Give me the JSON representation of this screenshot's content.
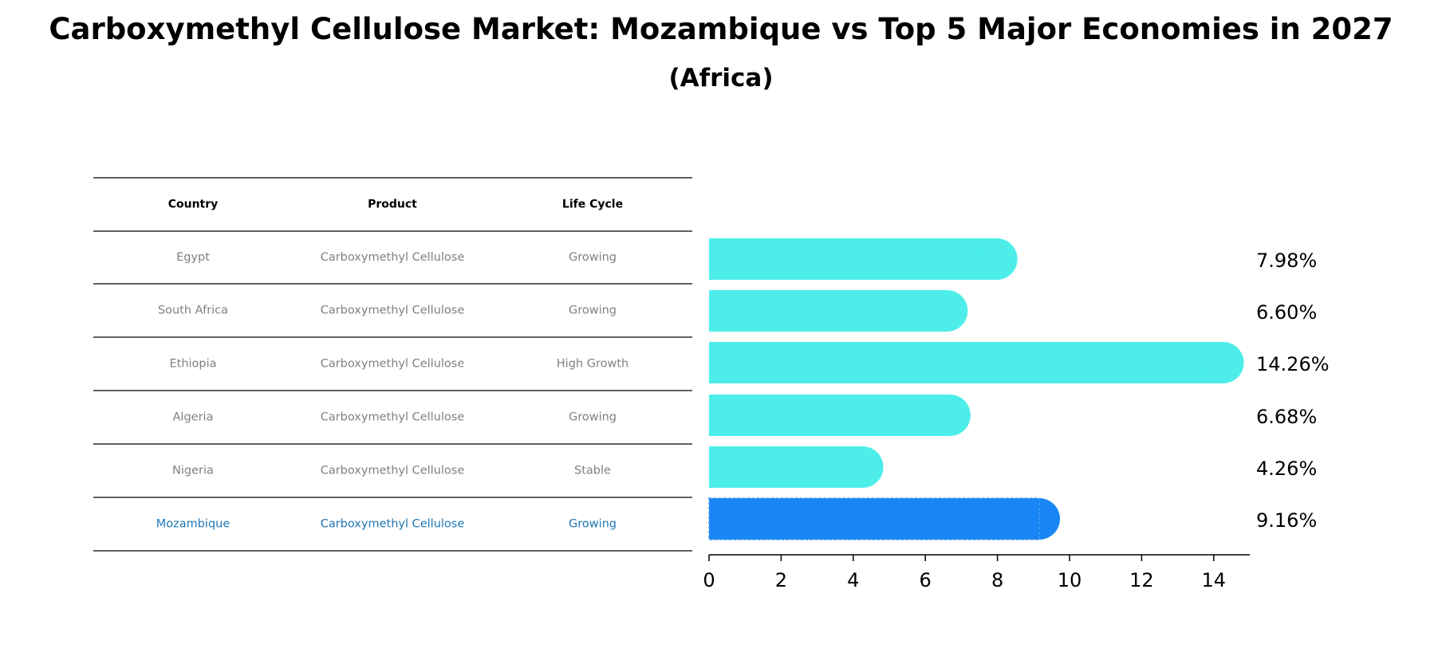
{
  "title": "Carboxymethyl Cellulose Market: Mozambique vs Top 5 Major Economies in 2027",
  "subtitle": "(Africa)",
  "table": {
    "headers": [
      "Country",
      "Product",
      "Life Cycle"
    ],
    "rows": [
      {
        "country": "Egypt",
        "product": "Carboxymethyl Cellulose",
        "life_cycle": "Growing",
        "highlight": false
      },
      {
        "country": "South Africa",
        "product": "Carboxymethyl Cellulose",
        "life_cycle": "Growing",
        "highlight": false
      },
      {
        "country": "Ethiopia",
        "product": "Carboxymethyl Cellulose",
        "life_cycle": "High Growth",
        "highlight": false
      },
      {
        "country": "Algeria",
        "product": "Carboxymethyl Cellulose",
        "life_cycle": "Growing",
        "highlight": false
      },
      {
        "country": "Nigeria",
        "product": "Carboxymethyl Cellulose",
        "life_cycle": "Stable",
        "highlight": false
      },
      {
        "country": "Mozambique",
        "product": "Carboxymethyl Cellulose",
        "life_cycle": "Growing",
        "highlight": true
      }
    ]
  },
  "colors": {
    "bar": "#4deeea",
    "highlight_bar": "#1a86f5",
    "highlight_text": "#1f77b4",
    "row_text": "#808080",
    "header_text": "#000000",
    "axis": "#000000"
  },
  "chart_data": {
    "type": "bar",
    "orientation": "horizontal",
    "categories": [
      "Egypt",
      "South Africa",
      "Ethiopia",
      "Algeria",
      "Nigeria",
      "Mozambique"
    ],
    "values": [
      7.98,
      6.6,
      14.26,
      6.68,
      4.26,
      9.16
    ],
    "value_labels": [
      "7.98%",
      "6.60%",
      "14.26%",
      "6.68%",
      "4.26%",
      "9.16%"
    ],
    "highlight_index": 5,
    "xlim": [
      0,
      15
    ],
    "xticks": [
      0,
      2,
      4,
      6,
      8,
      10,
      12,
      14
    ],
    "xlabel": "",
    "ylabel": "",
    "grid": false
  }
}
